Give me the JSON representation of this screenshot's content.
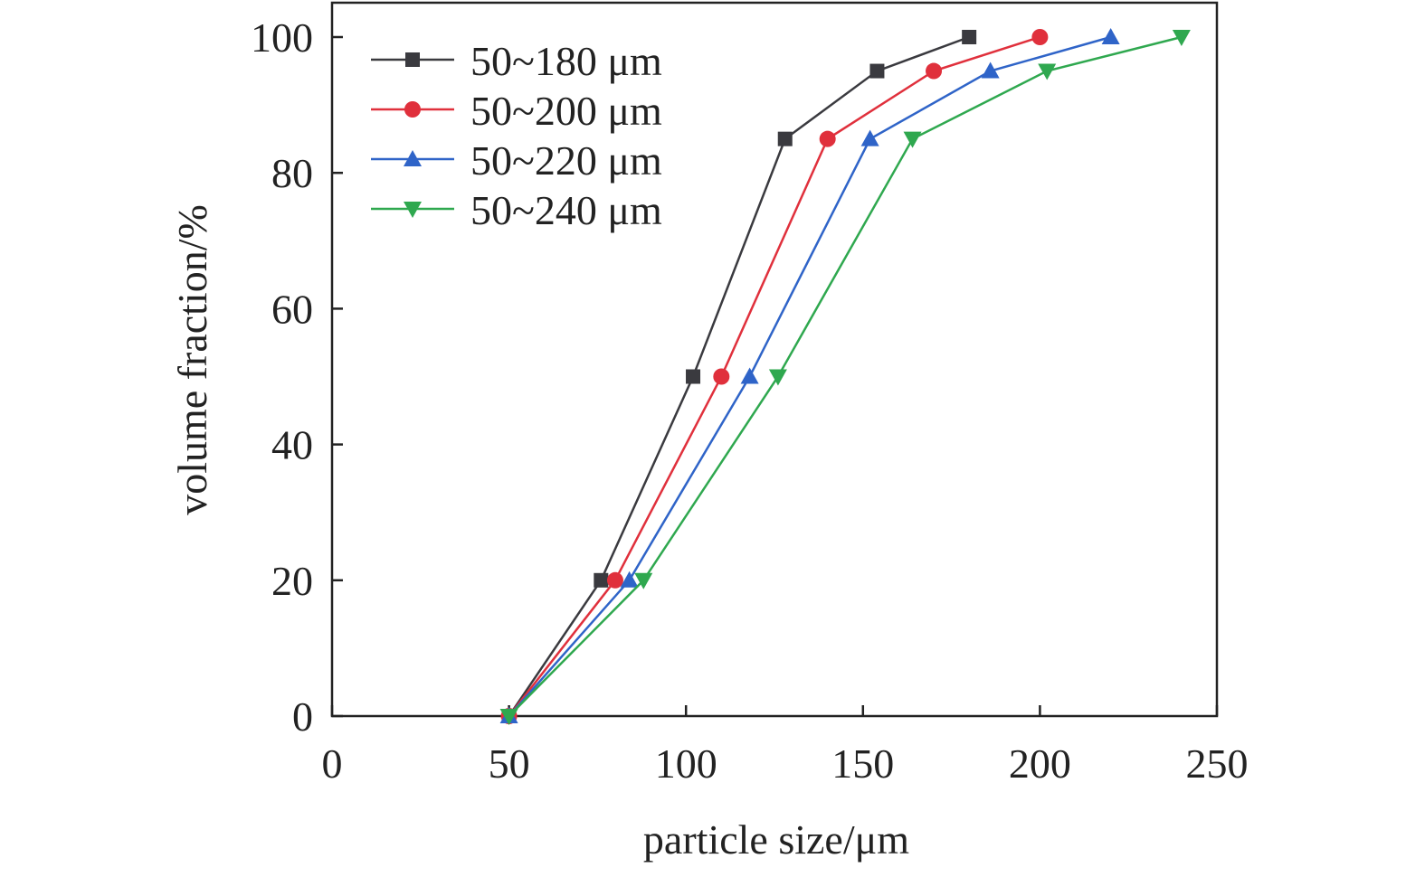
{
  "chart_data": {
    "type": "line",
    "title": "",
    "xlabel": "particle size/μm",
    "ylabel": "volume fraction/%",
    "xlim": [
      0,
      250
    ],
    "ylim": [
      0,
      100
    ],
    "xticks": [
      0,
      50,
      100,
      150,
      200,
      250
    ],
    "yticks": [
      0,
      20,
      40,
      60,
      80,
      100
    ],
    "grid": false,
    "legend_position": "top-left",
    "series": [
      {
        "name": "50~180 μm",
        "color": "#3a3a3f",
        "marker": "square",
        "x": [
          50,
          76,
          102,
          128,
          154,
          180
        ],
        "y": [
          0,
          20,
          50,
          85,
          95,
          100
        ]
      },
      {
        "name": "50~200 μm",
        "color": "#e0303c",
        "marker": "circle",
        "x": [
          50,
          80,
          110,
          140,
          170,
          200
        ],
        "y": [
          0,
          20,
          50,
          85,
          95,
          100
        ]
      },
      {
        "name": "50~220 μm",
        "color": "#2f64c8",
        "marker": "triangle-up",
        "x": [
          50,
          84,
          118,
          152,
          186,
          220
        ],
        "y": [
          0,
          20,
          50,
          85,
          95,
          100
        ]
      },
      {
        "name": "50~240 μm",
        "color": "#2fa84f",
        "marker": "triangle-down",
        "x": [
          50,
          88,
          126,
          164,
          202,
          240
        ],
        "y": [
          0,
          20,
          50,
          85,
          95,
          100
        ]
      }
    ]
  }
}
